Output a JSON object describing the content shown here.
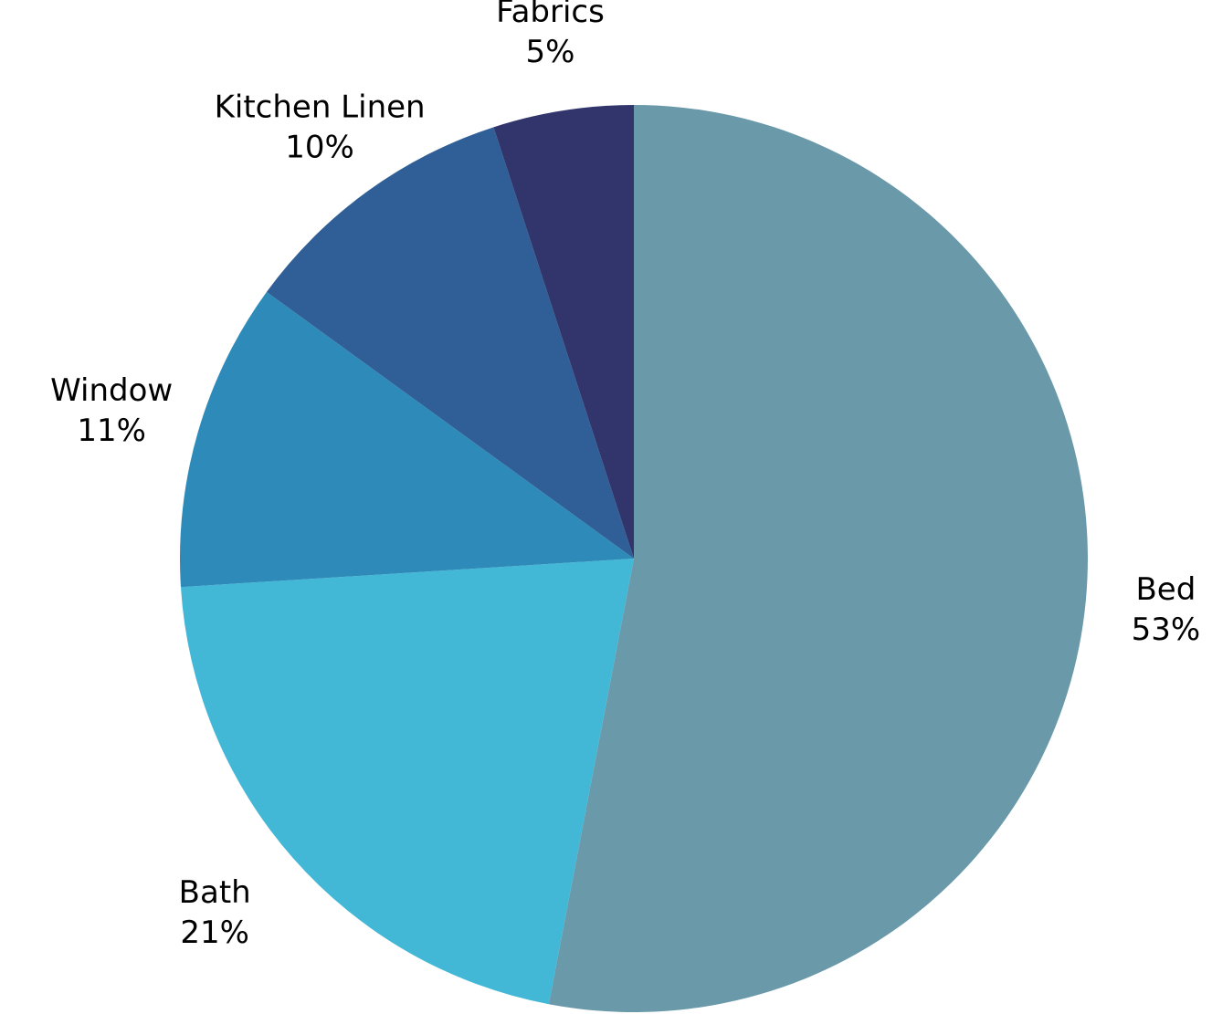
{
  "chart_data": {
    "type": "pie",
    "title": "",
    "legend": "none",
    "start_angle_deg": 0,
    "direction": "clockwise",
    "slices": [
      {
        "label": "Bed",
        "value": 53,
        "display": "53%",
        "color": "#6a99aa"
      },
      {
        "label": "Bath",
        "value": 21,
        "display": "21%",
        "color": "#42b7d6"
      },
      {
        "label": "Window",
        "value": 11,
        "display": "11%",
        "color": "#2e8bb9"
      },
      {
        "label": "Kitchen Linen",
        "value": 10,
        "display": "10%",
        "color": "#2f5f96"
      },
      {
        "label": "Fabrics",
        "value": 5,
        "display": "5%",
        "color": "#31356b"
      }
    ]
  }
}
